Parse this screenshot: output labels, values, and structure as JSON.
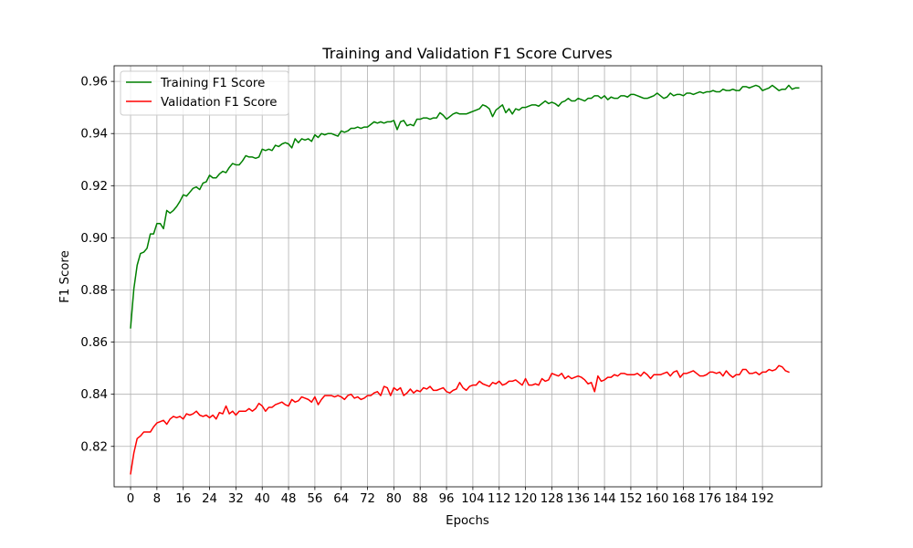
{
  "chart_data": {
    "type": "line",
    "title": "Training and Validation F1 Score Curves",
    "xlabel": "Epochs",
    "ylabel": "F1 Score",
    "xlim": [
      -5,
      210
    ],
    "ylim": [
      0.8045,
      0.966
    ],
    "grid": true,
    "legend_position": "top-left",
    "x_ticks": [
      0,
      8,
      16,
      24,
      32,
      40,
      48,
      56,
      64,
      72,
      80,
      88,
      96,
      104,
      112,
      120,
      128,
      136,
      144,
      152,
      160,
      168,
      176,
      184,
      192
    ],
    "y_ticks": [
      0.82,
      0.84,
      0.86,
      0.88,
      0.9,
      0.92,
      0.94,
      0.96
    ],
    "y_tick_labels": [
      "0.82",
      "0.84",
      "0.86",
      "0.88",
      "0.90",
      "0.92",
      "0.94",
      "0.96"
    ],
    "x_start": 0,
    "x_step": 1,
    "series": [
      {
        "name": "Training F1 Score",
        "color": "#008000",
        "values": [
          0.8655,
          0.8805,
          0.8895,
          0.894,
          0.8945,
          0.896,
          0.9015,
          0.9015,
          0.9055,
          0.9055,
          0.9035,
          0.9105,
          0.9095,
          0.9105,
          0.912,
          0.914,
          0.9165,
          0.916,
          0.9175,
          0.919,
          0.9195,
          0.9185,
          0.921,
          0.9215,
          0.924,
          0.923,
          0.923,
          0.9245,
          0.9255,
          0.925,
          0.927,
          0.9285,
          0.928,
          0.928,
          0.9295,
          0.9315,
          0.931,
          0.931,
          0.9305,
          0.931,
          0.934,
          0.9335,
          0.934,
          0.9335,
          0.9355,
          0.935,
          0.936,
          0.9365,
          0.936,
          0.9345,
          0.938,
          0.9365,
          0.938,
          0.9375,
          0.938,
          0.937,
          0.9395,
          0.9385,
          0.94,
          0.9395,
          0.94,
          0.94,
          0.9395,
          0.939,
          0.941,
          0.9405,
          0.941,
          0.942,
          0.942,
          0.9425,
          0.942,
          0.9425,
          0.9425,
          0.9435,
          0.9445,
          0.944,
          0.9445,
          0.944,
          0.9445,
          0.9445,
          0.945,
          0.9415,
          0.9445,
          0.945,
          0.943,
          0.9435,
          0.943,
          0.9455,
          0.9455,
          0.946,
          0.946,
          0.9455,
          0.946,
          0.946,
          0.948,
          0.947,
          0.9455,
          0.9465,
          0.9475,
          0.948,
          0.9475,
          0.9475,
          0.9475,
          0.948,
          0.9485,
          0.949,
          0.9495,
          0.951,
          0.9505,
          0.9495,
          0.9465,
          0.949,
          0.95,
          0.951,
          0.948,
          0.9495,
          0.9475,
          0.9495,
          0.949,
          0.95,
          0.95,
          0.9505,
          0.951,
          0.951,
          0.9505,
          0.9515,
          0.9525,
          0.9515,
          0.952,
          0.9515,
          0.9505,
          0.952,
          0.9525,
          0.9535,
          0.9525,
          0.9525,
          0.9535,
          0.953,
          0.9525,
          0.9535,
          0.9535,
          0.9545,
          0.9545,
          0.9535,
          0.9545,
          0.953,
          0.954,
          0.9535,
          0.9535,
          0.9545,
          0.9545,
          0.954,
          0.955,
          0.955,
          0.9545,
          0.954,
          0.9535,
          0.9535,
          0.954,
          0.9545,
          0.9555,
          0.9545,
          0.9535,
          0.954,
          0.9555,
          0.9545,
          0.955,
          0.955,
          0.9545,
          0.9555,
          0.9555,
          0.955,
          0.9555,
          0.956,
          0.9555,
          0.956,
          0.956,
          0.9565,
          0.956,
          0.956,
          0.957,
          0.9565,
          0.9565,
          0.957,
          0.9565,
          0.9565,
          0.958,
          0.958,
          0.9575,
          0.958,
          0.9585,
          0.958,
          0.9565,
          0.957,
          0.9575,
          0.9585,
          0.9575,
          0.9565,
          0.957,
          0.957,
          0.9585,
          0.957,
          0.9575,
          0.9575
        ],
        "point_count": 200
      },
      {
        "name": "Validation F1 Score",
        "color": "#ff0000",
        "values": [
          0.8095,
          0.8175,
          0.823,
          0.824,
          0.8255,
          0.8255,
          0.8255,
          0.8275,
          0.829,
          0.8295,
          0.83,
          0.8285,
          0.8305,
          0.8315,
          0.831,
          0.8315,
          0.8305,
          0.8325,
          0.832,
          0.8325,
          0.8335,
          0.832,
          0.8315,
          0.832,
          0.831,
          0.832,
          0.8305,
          0.833,
          0.8325,
          0.8355,
          0.8325,
          0.8335,
          0.832,
          0.8335,
          0.8335,
          0.8335,
          0.8345,
          0.8335,
          0.8345,
          0.8365,
          0.8355,
          0.8335,
          0.835,
          0.835,
          0.836,
          0.8365,
          0.837,
          0.836,
          0.8355,
          0.838,
          0.837,
          0.8375,
          0.839,
          0.8385,
          0.838,
          0.837,
          0.839,
          0.836,
          0.838,
          0.8395,
          0.8395,
          0.8395,
          0.839,
          0.8395,
          0.839,
          0.838,
          0.8395,
          0.84,
          0.8385,
          0.839,
          0.838,
          0.8385,
          0.8395,
          0.8395,
          0.8405,
          0.841,
          0.8395,
          0.843,
          0.8425,
          0.8395,
          0.8425,
          0.8415,
          0.8425,
          0.8395,
          0.8405,
          0.842,
          0.8405,
          0.8415,
          0.841,
          0.8425,
          0.842,
          0.843,
          0.8415,
          0.8415,
          0.842,
          0.8425,
          0.841,
          0.8405,
          0.8415,
          0.842,
          0.8445,
          0.8425,
          0.8415,
          0.843,
          0.8435,
          0.8435,
          0.845,
          0.844,
          0.8435,
          0.843,
          0.8445,
          0.844,
          0.845,
          0.8435,
          0.844,
          0.845,
          0.845,
          0.8455,
          0.8445,
          0.8435,
          0.846,
          0.8435,
          0.8435,
          0.844,
          0.8435,
          0.846,
          0.845,
          0.8455,
          0.848,
          0.8475,
          0.847,
          0.848,
          0.846,
          0.847,
          0.846,
          0.8465,
          0.847,
          0.8465,
          0.8455,
          0.844,
          0.8445,
          0.841,
          0.847,
          0.845,
          0.8455,
          0.8465,
          0.8465,
          0.8475,
          0.847,
          0.848,
          0.848,
          0.8475,
          0.8475,
          0.8475,
          0.848,
          0.847,
          0.8485,
          0.8475,
          0.846,
          0.8475,
          0.8475,
          0.8475,
          0.848,
          0.8485,
          0.847,
          0.8485,
          0.849,
          0.8465,
          0.848,
          0.848,
          0.8485,
          0.849,
          0.848,
          0.847,
          0.847,
          0.8475,
          0.8485,
          0.8485,
          0.848,
          0.8485,
          0.847,
          0.849,
          0.8475,
          0.8465,
          0.8475,
          0.8475,
          0.8495,
          0.8495,
          0.848,
          0.848,
          0.8485,
          0.8475,
          0.8485,
          0.8485,
          0.8495,
          0.849,
          0.8495,
          0.851,
          0.8505,
          0.849,
          0.8485
        ],
        "point_count": 200
      }
    ]
  }
}
